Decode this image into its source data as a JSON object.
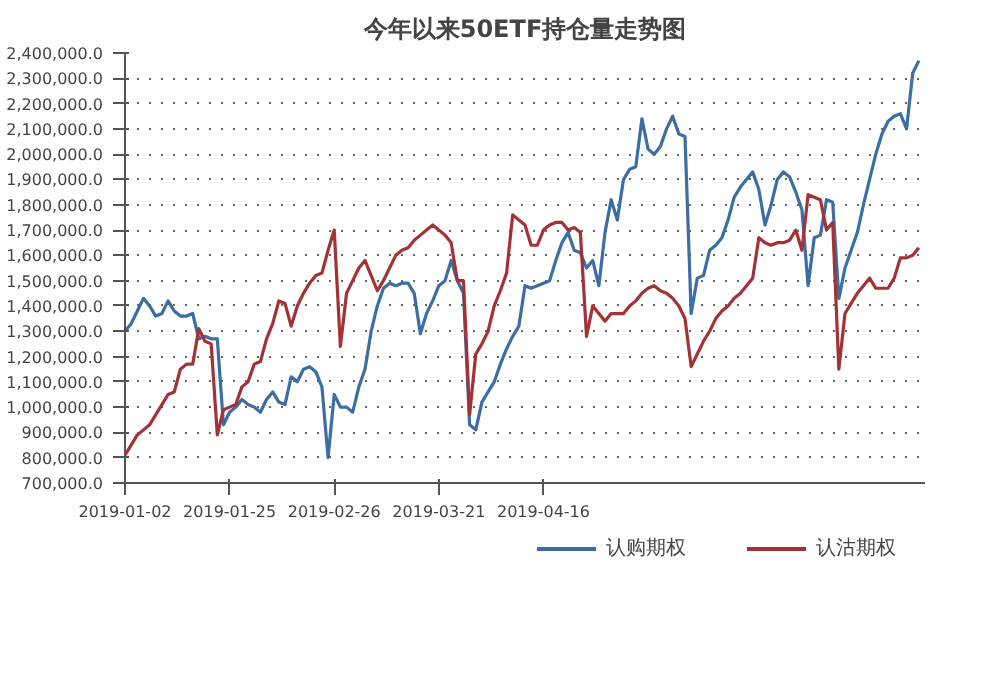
{
  "chart_data": {
    "type": "line",
    "title": "今年以来50ETF持仓量走势图",
    "categories": [
      "2019-01-02",
      null,
      null,
      null,
      null,
      null,
      null,
      null,
      null,
      null,
      null,
      null,
      null,
      null,
      null,
      null,
      null,
      "2019-01-25",
      null,
      null,
      null,
      null,
      null,
      null,
      null,
      null,
      null,
      null,
      null,
      null,
      null,
      null,
      null,
      null,
      "2019-02-26",
      null,
      null,
      null,
      null,
      null,
      null,
      null,
      null,
      null,
      null,
      null,
      null,
      null,
      null,
      null,
      null,
      "2019-03-21",
      null,
      null,
      null,
      null,
      null,
      null,
      null,
      null,
      null,
      null,
      null,
      null,
      null,
      null,
      null,
      null,
      "2019-04-16",
      null,
      null,
      null,
      null,
      null,
      null,
      null,
      null,
      null,
      null,
      null,
      null,
      null,
      null,
      null,
      null,
      null,
      null,
      null,
      null,
      null,
      null,
      null,
      null,
      null,
      null,
      null,
      null,
      null,
      null,
      null,
      null,
      null,
      null,
      null,
      null,
      null,
      null,
      null,
      null,
      null,
      null,
      null,
      null,
      null,
      null,
      null,
      null,
      null,
      null,
      null,
      null,
      null,
      null,
      null,
      null,
      null,
      null,
      null,
      null,
      null
    ],
    "ylim": [
      700000,
      2400000
    ],
    "yticks": [
      {
        "value": 700000,
        "label": "700,000.0"
      },
      {
        "value": 800000,
        "label": "800,000.0"
      },
      {
        "value": 900000,
        "label": "900,000.0"
      },
      {
        "value": 1000000,
        "label": "1,000,000.0"
      },
      {
        "value": 1100000,
        "label": "1,100,000.0"
      },
      {
        "value": 1200000,
        "label": "1,200,000.0"
      },
      {
        "value": 1300000,
        "label": "1,300,000.0"
      },
      {
        "value": 1400000,
        "label": "1,400,000.0"
      },
      {
        "value": 1500000,
        "label": "1,500,000.0"
      },
      {
        "value": 1600000,
        "label": "1,600,000.0"
      },
      {
        "value": 1700000,
        "label": "1,700,000.0"
      },
      {
        "value": 1800000,
        "label": "1,800,000.0"
      },
      {
        "value": 1900000,
        "label": "1,900,000.0"
      },
      {
        "value": 2000000,
        "label": "2,000,000.0"
      },
      {
        "value": 2100000,
        "label": "2,100,000.0"
      },
      {
        "value": 2200000,
        "label": "2,200,000.0"
      },
      {
        "value": 2300000,
        "label": "2,300,000.0"
      },
      {
        "value": 2400000,
        "label": "2,400,000.0"
      }
    ],
    "grid": "y",
    "legend": "bottom",
    "line_style": "solid",
    "series": [
      {
        "name": "认购期权",
        "color": "#3a6ea5",
        "values": [
          1300000,
          1330000,
          1380000,
          1430000,
          1400000,
          1360000,
          1370000,
          1420000,
          1380000,
          1360000,
          1360000,
          1370000,
          1270000,
          1280000,
          1270000,
          1270000,
          930000,
          980000,
          1000000,
          1030000,
          1010000,
          1000000,
          980000,
          1030000,
          1060000,
          1020000,
          1010000,
          1120000,
          1100000,
          1150000,
          1160000,
          1140000,
          1080000,
          800000,
          1050000,
          1000000,
          1000000,
          980000,
          1080000,
          1150000,
          1300000,
          1400000,
          1470000,
          1490000,
          1480000,
          1490000,
          1490000,
          1450000,
          1290000,
          1370000,
          1420000,
          1480000,
          1500000,
          1580000,
          1500000,
          1450000,
          930000,
          910000,
          1020000,
          1060000,
          1100000,
          1170000,
          1230000,
          1280000,
          1320000,
          1480000,
          1470000,
          1480000,
          1490000,
          1500000,
          1580000,
          1650000,
          1690000,
          1620000,
          1610000,
          1550000,
          1580000,
          1480000,
          1690000,
          1820000,
          1740000,
          1900000,
          1940000,
          1950000,
          2140000,
          2020000,
          2000000,
          2030000,
          2100000,
          2150000,
          2080000,
          2070000,
          1370000,
          1510000,
          1520000,
          1620000,
          1640000,
          1670000,
          1740000,
          1830000,
          1870000,
          1900000,
          1930000,
          1860000,
          1720000,
          1800000,
          1900000,
          1930000,
          1910000,
          1850000,
          1780000,
          1480000,
          1670000,
          1680000,
          1820000,
          1810000,
          1430000,
          1550000,
          1620000,
          1690000,
          1800000,
          1900000,
          2000000,
          2080000,
          2130000,
          2150000,
          2160000,
          2100000,
          2320000,
          2370000
        ]
      },
      {
        "name": "认沽期权",
        "color": "#a33236",
        "values": [
          810000,
          850000,
          890000,
          910000,
          930000,
          970000,
          1010000,
          1050000,
          1060000,
          1150000,
          1170000,
          1170000,
          1310000,
          1260000,
          1250000,
          890000,
          990000,
          1000000,
          1010000,
          1080000,
          1100000,
          1170000,
          1180000,
          1270000,
          1330000,
          1420000,
          1410000,
          1320000,
          1400000,
          1450000,
          1490000,
          1520000,
          1530000,
          1620000,
          1700000,
          1240000,
          1450000,
          1500000,
          1550000,
          1580000,
          1520000,
          1460000,
          1500000,
          1550000,
          1600000,
          1620000,
          1630000,
          1660000,
          1680000,
          1700000,
          1720000,
          1700000,
          1680000,
          1650000,
          1500000,
          1500000,
          970000,
          1210000,
          1250000,
          1300000,
          1400000,
          1460000,
          1530000,
          1760000,
          1740000,
          1720000,
          1640000,
          1640000,
          1700000,
          1720000,
          1730000,
          1730000,
          1700000,
          1710000,
          1690000,
          1280000,
          1400000,
          1370000,
          1340000,
          1370000,
          1370000,
          1370000,
          1400000,
          1420000,
          1450000,
          1470000,
          1480000,
          1460000,
          1450000,
          1430000,
          1400000,
          1350000,
          1160000,
          1210000,
          1260000,
          1300000,
          1350000,
          1380000,
          1400000,
          1430000,
          1450000,
          1480000,
          1510000,
          1670000,
          1650000,
          1640000,
          1650000,
          1650000,
          1660000,
          1700000,
          1620000,
          1840000,
          1830000,
          1820000,
          1700000,
          1730000,
          1150000,
          1370000,
          1410000,
          1450000,
          1480000,
          1510000,
          1470000,
          1470000,
          1470000,
          1510000,
          1590000,
          1590000,
          1600000,
          1630000
        ]
      }
    ]
  }
}
